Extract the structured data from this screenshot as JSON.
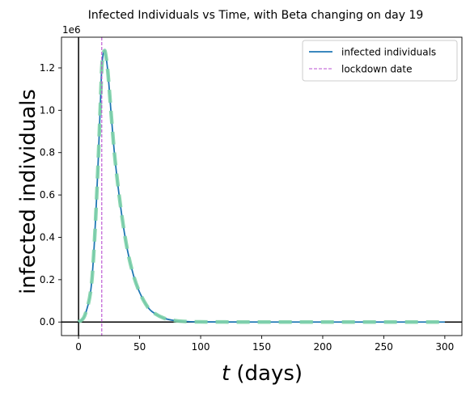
{
  "chart_data": {
    "type": "line",
    "title": "Infected Individuals vs Time, with Beta changing on day 19",
    "xlabel_italic": "t",
    "xlabel_rest": " (days)",
    "ylabel": "infected individuals",
    "offset_text": "1e6",
    "xlim": [
      -14,
      314
    ],
    "ylim": [
      -0.064,
      1.345
    ],
    "y_scale_multiplier": 1000000,
    "xticks": [
      0,
      50,
      100,
      150,
      200,
      250,
      300
    ],
    "yticks": [
      0.0,
      0.2,
      0.4,
      0.6,
      0.8,
      1.0,
      1.2
    ],
    "ytick_labels": [
      "0.0",
      "0.2",
      "0.4",
      "0.6",
      "0.8",
      "1.0",
      "1.2"
    ],
    "legend_position": "top-right",
    "reference_lines": [
      {
        "orientation": "vertical",
        "value": 0,
        "color": "#000000"
      },
      {
        "orientation": "horizontal",
        "value": 0,
        "color": "#000000"
      }
    ],
    "series": [
      {
        "name": "infected individuals",
        "style": "solid",
        "color": "#1f77b4",
        "x": [
          0,
          5,
          10,
          13,
          16,
          18,
          19,
          20,
          21,
          22,
          24,
          27,
          30,
          35,
          40,
          45,
          50,
          55,
          60,
          70,
          80,
          90,
          100,
          120,
          150,
          200,
          250,
          300
        ],
        "y": [
          0.0,
          0.03,
          0.15,
          0.38,
          0.75,
          1.05,
          1.2,
          1.26,
          1.28,
          1.27,
          1.18,
          0.96,
          0.76,
          0.52,
          0.34,
          0.22,
          0.14,
          0.085,
          0.05,
          0.018,
          0.006,
          0.002,
          0.0008,
          0.0002,
          0.0,
          0.0,
          0.0,
          0.0
        ]
      },
      {
        "name": "",
        "style": "dashed",
        "color": "#7fd3a8",
        "x": [
          0,
          5,
          10,
          13,
          16,
          18,
          19,
          20,
          21,
          22,
          24,
          27,
          30,
          35,
          40,
          45,
          50,
          55,
          60,
          70,
          80,
          90,
          100,
          120,
          150,
          200,
          250,
          300
        ],
        "y": [
          0.0,
          0.03,
          0.15,
          0.38,
          0.75,
          1.05,
          1.2,
          1.26,
          1.28,
          1.27,
          1.18,
          0.96,
          0.76,
          0.52,
          0.34,
          0.22,
          0.14,
          0.085,
          0.05,
          0.018,
          0.006,
          0.002,
          0.0008,
          0.0002,
          0.0,
          0.0,
          0.0,
          0.0
        ]
      },
      {
        "name": "lockdown date",
        "style": "dashed-vertical",
        "color": "#b84fd1",
        "x_value": 19
      }
    ]
  }
}
